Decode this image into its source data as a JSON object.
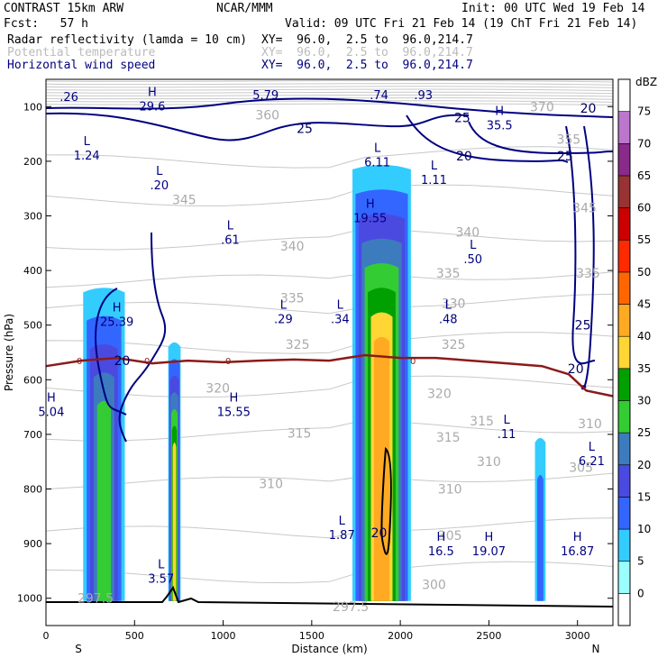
{
  "header": {
    "model": "CONTRAST 15km ARW",
    "org": "NCAR/MMM",
    "init": "Init: 00 UTC Wed 19 Feb 14",
    "fcst": "Fcst:   57 h",
    "valid": "Valid: 09 UTC Fri 21 Feb 14 (19 ChT Fri 21 Feb 14)",
    "fields": [
      {
        "name": "Radar reflectivity (lamda = 10 cm)",
        "xy": "XY=  96.0,  2.5 to  96.0,214.7",
        "color": "#000000"
      },
      {
        "name": "Potential temperature",
        "xy": "XY=  96.0,  2.5 to  96.0,214.7",
        "color": "#bbbbbb"
      },
      {
        "name": "Horizontal wind speed",
        "xy": "XY=  96.0,  2.5 to  96.0,214.7",
        "color": "#000080"
      }
    ]
  },
  "chart_data": {
    "type": "heatmap",
    "title": "",
    "xlabel": "Distance (km)",
    "ylabel": "Pressure (hPa)",
    "xlim": [
      0,
      3200
    ],
    "ylim": [
      1050,
      50
    ],
    "x_ticks": [
      0,
      500,
      1000,
      1500,
      2000,
      2500,
      3000
    ],
    "y_ticks": [
      100,
      200,
      300,
      400,
      500,
      600,
      700,
      800,
      900,
      1000
    ],
    "x_end_labels": {
      "left": "S",
      "right": "N"
    },
    "colorbar": {
      "unit": "dBZ",
      "levels": [
        0,
        5,
        10,
        15,
        20,
        25,
        30,
        35,
        40,
        45,
        50,
        55,
        60,
        65,
        70,
        75
      ],
      "colors": [
        "#ffffff",
        "#99ffff",
        "#33ccff",
        "#3366ff",
        "#4a4ae0",
        "#3d7bbf",
        "#33cc33",
        "#00a000",
        "#ffd633",
        "#ffaa22",
        "#ff6600",
        "#ff2a00",
        "#cc0000",
        "#993333",
        "#8a2a8a",
        "#bb77cc",
        "#ffffff"
      ]
    },
    "reflectivity_cells": [
      {
        "x": [
          210,
          445
        ],
        "top": 430,
        "base": 1005,
        "peak_dbz": 25
      },
      {
        "x": [
          690,
          760
        ],
        "top": 530,
        "base": 1005,
        "peak_dbz": 35
      },
      {
        "x": [
          1730,
          2060
        ],
        "top": 205,
        "base": 1005,
        "peak_dbz": 40
      },
      {
        "x": [
          2760,
          2820
        ],
        "top": 705,
        "base": 1005,
        "peak_dbz": 10
      }
    ],
    "freezing_level": {
      "label": "0",
      "x": [
        0,
        200,
        400,
        600,
        800,
        1000,
        1200,
        1400,
        1600,
        1800,
        2000,
        2200,
        2400,
        2600,
        2800,
        2950,
        3050,
        3200
      ],
      "p": [
        575,
        565,
        560,
        570,
        565,
        568,
        565,
        563,
        565,
        555,
        560,
        560,
        565,
        570,
        575,
        590,
        620,
        630
      ]
    },
    "theta_contour_labels": [
      {
        "text": "345",
        "x": 780,
        "p": 270
      },
      {
        "text": "340",
        "x": 1390,
        "p": 355
      },
      {
        "text": "335",
        "x": 1390,
        "p": 450
      },
      {
        "text": "325",
        "x": 1420,
        "p": 535
      },
      {
        "text": "320",
        "x": 970,
        "p": 615
      },
      {
        "text": "315",
        "x": 1430,
        "p": 698
      },
      {
        "text": "310",
        "x": 1270,
        "p": 790
      },
      {
        "text": "340",
        "x": 2380,
        "p": 330
      },
      {
        "text": "335",
        "x": 2270,
        "p": 405
      },
      {
        "text": "330",
        "x": 2300,
        "p": 460
      },
      {
        "text": "325",
        "x": 2300,
        "p": 535
      },
      {
        "text": "320",
        "x": 2220,
        "p": 625
      },
      {
        "text": "315",
        "x": 2460,
        "p": 675
      },
      {
        "text": "315",
        "x": 2270,
        "p": 705
      },
      {
        "text": "310",
        "x": 2500,
        "p": 750
      },
      {
        "text": "310",
        "x": 2280,
        "p": 800
      },
      {
        "text": "305",
        "x": 2280,
        "p": 885
      },
      {
        "text": "300",
        "x": 2190,
        "p": 975
      },
      {
        "text": "310",
        "x": 3070,
        "p": 680
      },
      {
        "text": "305",
        "x": 3020,
        "p": 760
      },
      {
        "text": "335",
        "x": 3060,
        "p": 405
      },
      {
        "text": "345",
        "x": 3040,
        "p": 285
      },
      {
        "text": "370",
        "x": 2800,
        "p": 100
      },
      {
        "text": "360",
        "x": 1250,
        "p": 115
      },
      {
        "text": "355",
        "x": 2950,
        "p": 160
      },
      {
        "text": "297.5",
        "x": 1720,
        "p": 1015
      },
      {
        "text": "297.5",
        "x": 280,
        "p": 1000
      }
    ],
    "wind_contour_labels": [
      {
        "text": "25",
        "x": 1460,
        "p": 140
      },
      {
        "text": "25",
        "x": 2350,
        "p": 120
      },
      {
        "text": "20",
        "x": 2360,
        "p": 190
      },
      {
        "text": "25",
        "x": 2930,
        "p": 190
      },
      {
        "text": "20",
        "x": 3060,
        "p": 103
      },
      {
        "text": "25",
        "x": 3030,
        "p": 500
      },
      {
        "text": "20",
        "x": 2990,
        "p": 580
      },
      {
        "text": "20",
        "x": 430,
        "p": 565
      },
      {
        "text": "20",
        "x": 1880,
        "p": 880
      }
    ],
    "extrema": [
      {
        "type": "H",
        "value": "29.6",
        "x": 600,
        "p": 95
      },
      {
        "type": "",
        "value": ".26",
        "x": 130,
        "p": 78
      },
      {
        "type": "",
        "value": "5.79",
        "x": 1240,
        "p": 75
      },
      {
        "type": "",
        "value": ".74",
        "x": 1880,
        "p": 75
      },
      {
        "type": "",
        "value": ".93",
        "x": 2130,
        "p": 75
      },
      {
        "type": "H",
        "value": "35.5",
        "x": 2560,
        "p": 130
      },
      {
        "type": "L",
        "value": "1.24",
        "x": 230,
        "p": 185
      },
      {
        "type": "L",
        "value": "6.11",
        "x": 1870,
        "p": 198
      },
      {
        "type": "L",
        "value": ".20",
        "x": 640,
        "p": 240
      },
      {
        "type": "L",
        "value": "1.11",
        "x": 2190,
        "p": 230
      },
      {
        "type": "H",
        "value": "19.55",
        "x": 1830,
        "p": 300
      },
      {
        "type": "L",
        "value": ".61",
        "x": 1040,
        "p": 340
      },
      {
        "type": "L",
        "value": ".50",
        "x": 2410,
        "p": 375
      },
      {
        "type": "H",
        "value": "25.39",
        "x": 400,
        "p": 490
      },
      {
        "type": "L",
        "value": ".29",
        "x": 1340,
        "p": 485
      },
      {
        "type": "L",
        "value": ".34",
        "x": 1660,
        "p": 485
      },
      {
        "type": "L",
        "value": ".48",
        "x": 2270,
        "p": 485
      },
      {
        "type": "H",
        "value": "5.04",
        "x": 30,
        "p": 655
      },
      {
        "type": "H",
        "value": "15.55",
        "x": 1060,
        "p": 655
      },
      {
        "type": "L",
        "value": ".11",
        "x": 2600,
        "p": 695
      },
      {
        "type": "L",
        "value": "6.21",
        "x": 3080,
        "p": 745
      },
      {
        "type": "L",
        "value": "1.87",
        "x": 1670,
        "p": 880
      },
      {
        "type": "H",
        "value": "16.5",
        "x": 2230,
        "p": 910
      },
      {
        "type": "H",
        "value": "19.07",
        "x": 2500,
        "p": 910
      },
      {
        "type": "H",
        "value": "16.87",
        "x": 3000,
        "p": 910
      },
      {
        "type": "L",
        "value": "3.57",
        "x": 650,
        "p": 960
      }
    ]
  }
}
